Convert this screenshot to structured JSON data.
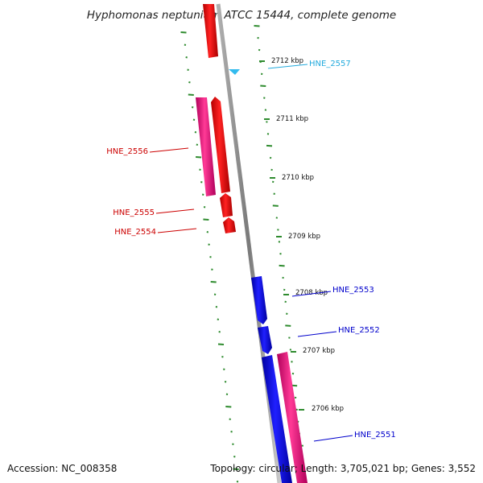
{
  "title": "Hyphomonas neptunium ATCC 15444, complete genome",
  "footer": {
    "accession": "Accession: NC_008358",
    "summary": "Topology: circular; Length: 3,705,021 bp; Genes: 3,552"
  },
  "colors": {
    "backbone": "#8a8a8a",
    "tick": "#2e8b2e",
    "forward_cds": "#ff1a1a",
    "reverse_cds": "#1a1aff",
    "orf": "#ff2a8a",
    "trna": "#33bbee",
    "label_red": "#cc0000",
    "label_blue": "#0000cc",
    "label_cyan": "#22aadd"
  },
  "ticks": [
    {
      "label": "2712 kbp",
      "kbp": 2712
    },
    {
      "label": "2711 kbp",
      "kbp": 2711
    },
    {
      "label": "2710 kbp",
      "kbp": 2710
    },
    {
      "label": "2709 kbp",
      "kbp": 2709
    },
    {
      "label": "2708 kbp",
      "kbp": 2708
    },
    {
      "label": "2707 kbp",
      "kbp": 2707
    },
    {
      "label": "2706 kbp",
      "kbp": 2706
    }
  ],
  "genes": [
    {
      "id": "HNE_2557",
      "color_role": "label_cyan"
    },
    {
      "id": "HNE_2556",
      "color_role": "label_red"
    },
    {
      "id": "HNE_2555",
      "color_role": "label_red"
    },
    {
      "id": "HNE_2554",
      "color_role": "label_red"
    },
    {
      "id": "HNE_2553",
      "color_role": "label_blue"
    },
    {
      "id": "HNE_2552",
      "color_role": "label_blue"
    },
    {
      "id": "HNE_2551",
      "color_role": "label_blue"
    }
  ]
}
